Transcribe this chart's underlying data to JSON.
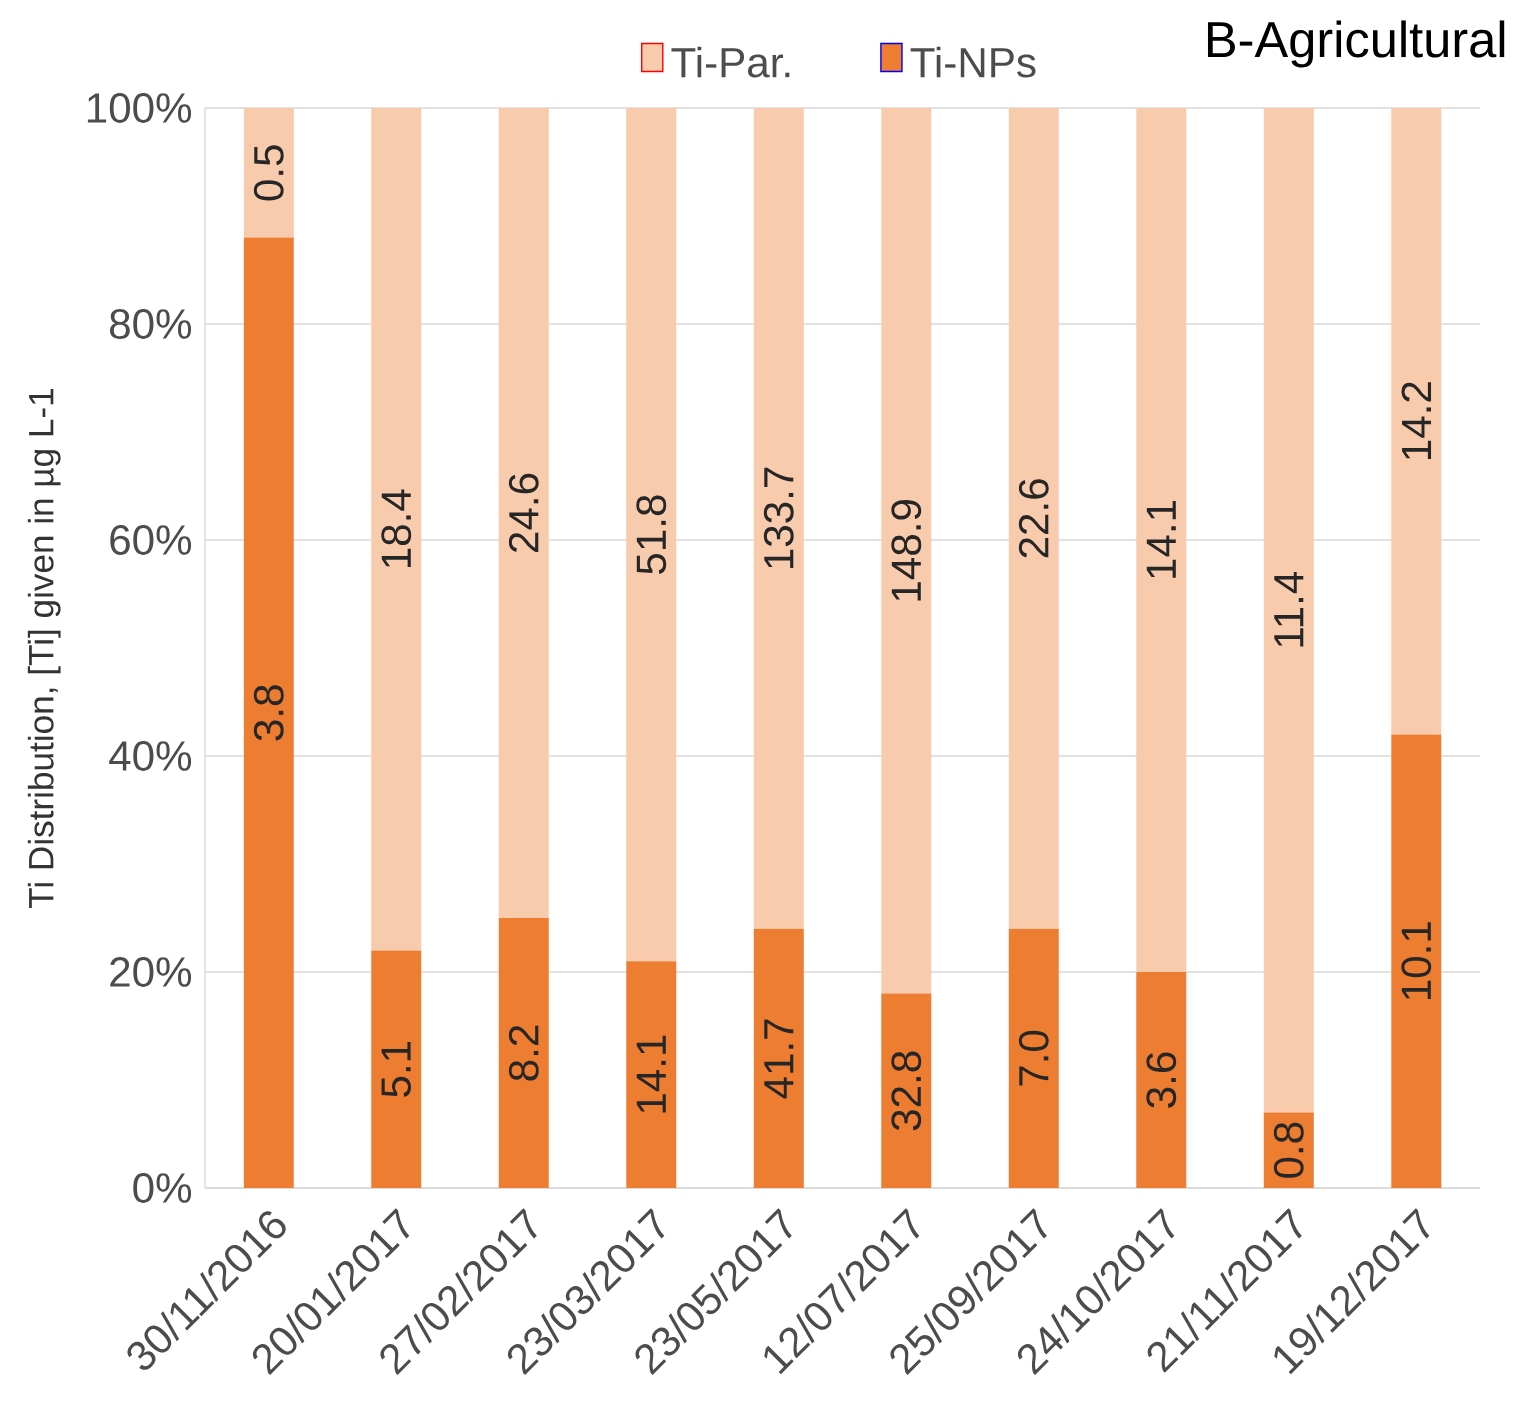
{
  "chart_data": {
    "type": "bar",
    "stacked": true,
    "title": "B-Agricultural",
    "ylabel": "Ti Distribution, [Ti] given in µg L-1",
    "categories": [
      "30/11/2016",
      "20/01/2017",
      "27/02/2017",
      "23/03/2017",
      "23/05/2017",
      "12/07/2017",
      "25/09/2017",
      "24/10/2017",
      "21/11/2017",
      "19/12/2017"
    ],
    "series": [
      {
        "name": "Ti-NPs",
        "color": "#ed7d31",
        "values": [
          88,
          22,
          25,
          21,
          24,
          18,
          24,
          20,
          7,
          42
        ]
      },
      {
        "name": "Ti-Par.",
        "color": "#f8cbad",
        "values": [
          12,
          78,
          75,
          79,
          76,
          82,
          76,
          80,
          93,
          58
        ]
      }
    ],
    "annotations": [
      "3.8",
      "5.1",
      "8.2",
      "14.1",
      "41.7",
      "32.8",
      "7.0",
      "3.6",
      "0.8",
      "10.1",
      "0.5",
      "18.4",
      "24.6",
      "51.8",
      "133.7",
      "148.9",
      "22.6",
      "14.1",
      "11.4",
      "14.2"
    ],
    "ylim": [
      0,
      100
    ],
    "yticks": [
      {
        "value": 0,
        "label": "0%"
      },
      {
        "value": 20,
        "label": "20%"
      },
      {
        "value": 40,
        "label": "40%"
      },
      {
        "value": 60,
        "label": "60%"
      },
      {
        "value": 80,
        "label": "80%"
      },
      {
        "value": 100,
        "label": "100%"
      }
    ],
    "grid": "y",
    "legend": "top"
  }
}
